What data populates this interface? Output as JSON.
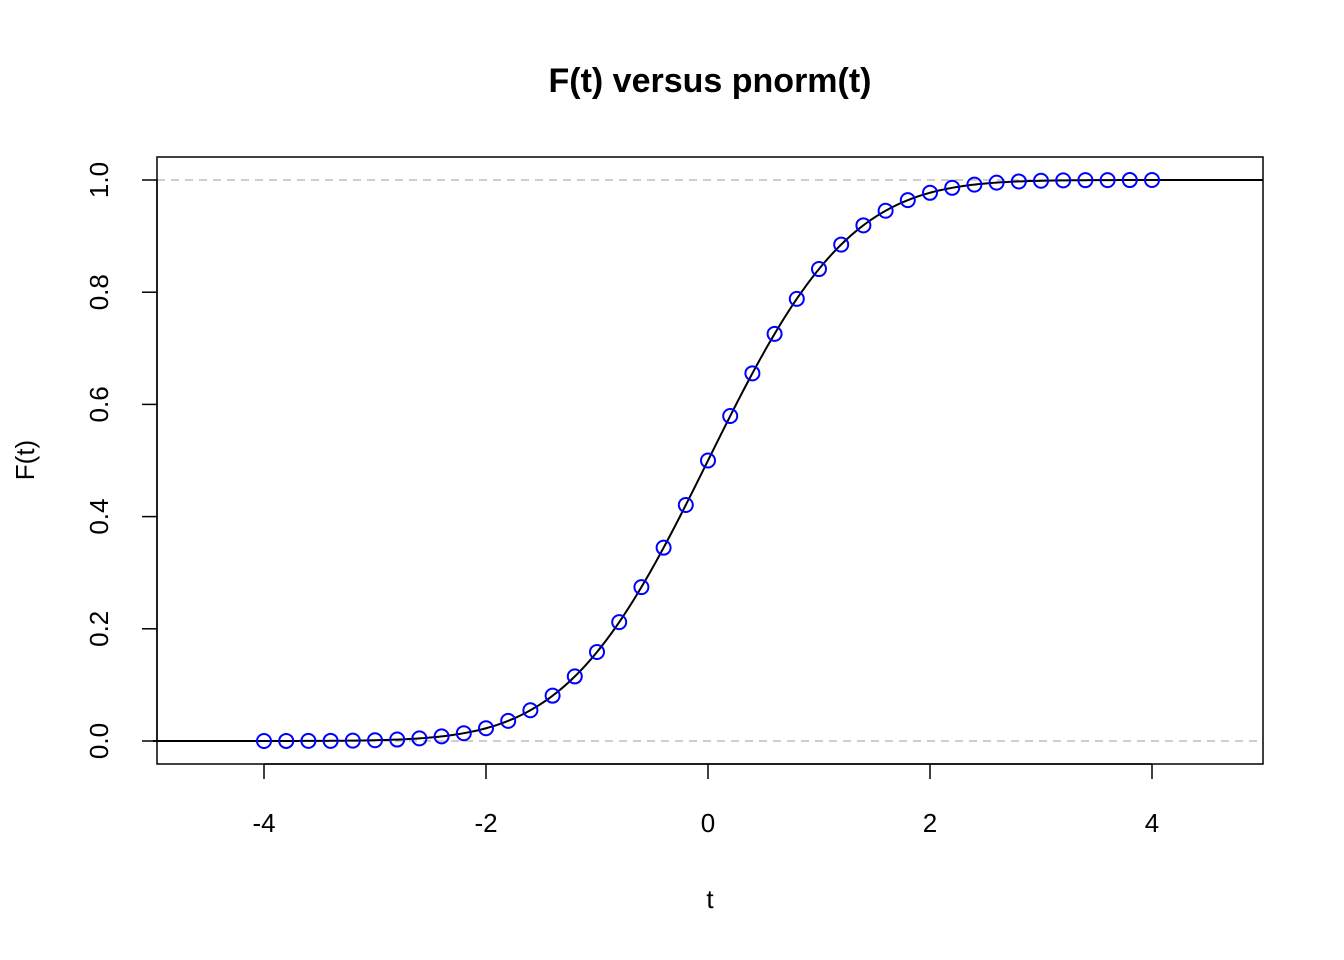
{
  "chart_data": {
    "type": "line",
    "title": "F(t) versus pnorm(t)",
    "xlabel": "t",
    "ylabel": "F(t)",
    "xlim": [
      -5,
      5
    ],
    "ylim": [
      0,
      1
    ],
    "xticks": [
      -4,
      -2,
      0,
      2,
      4
    ],
    "xtick_labels": [
      "-4",
      "-2",
      "0",
      "2",
      "4"
    ],
    "yticks": [
      0,
      0.2,
      0.4,
      0.6,
      0.8,
      1.0
    ],
    "ytick_labels": [
      "0.0",
      "0.2",
      "0.4",
      "0.6",
      "0.8",
      "1.0"
    ],
    "grid": false,
    "reference_lines": [
      {
        "y": 0,
        "style": "dashed",
        "color": "#bebebe"
      },
      {
        "y": 1,
        "style": "dashed",
        "color": "#bebebe"
      }
    ],
    "series": [
      {
        "kind": "line",
        "color": "#000000",
        "function": "pnorm",
        "x_range": [
          -5,
          5
        ]
      },
      {
        "kind": "points",
        "marker": "open-circle",
        "color": "#0000ff",
        "x": [
          -4.0,
          -3.8,
          -3.6,
          -3.4,
          -3.2,
          -3.0,
          -2.8,
          -2.6,
          -2.4,
          -2.2,
          -2.0,
          -1.8,
          -1.6,
          -1.4,
          -1.2,
          -1.0,
          -0.8,
          -0.6,
          -0.4,
          -0.2,
          0.0,
          0.2,
          0.4,
          0.6,
          0.8,
          1.0,
          1.2,
          1.4,
          1.6,
          1.8,
          2.0,
          2.2,
          2.4,
          2.6,
          2.8,
          3.0,
          3.2,
          3.4,
          3.6,
          3.8,
          4.0
        ],
        "y": [
          0.0,
          0.0001,
          0.0002,
          0.0003,
          0.0007,
          0.0013,
          0.0026,
          0.0047,
          0.0082,
          0.0139,
          0.0228,
          0.0359,
          0.0548,
          0.0808,
          0.1151,
          0.1587,
          0.2119,
          0.2743,
          0.3446,
          0.4207,
          0.5,
          0.5793,
          0.6554,
          0.7257,
          0.7881,
          0.8413,
          0.8849,
          0.9192,
          0.9452,
          0.9641,
          0.9772,
          0.9861,
          0.9918,
          0.9953,
          0.9974,
          0.9987,
          0.9993,
          0.9997,
          0.9998,
          0.9999,
          1.0
        ]
      }
    ]
  }
}
